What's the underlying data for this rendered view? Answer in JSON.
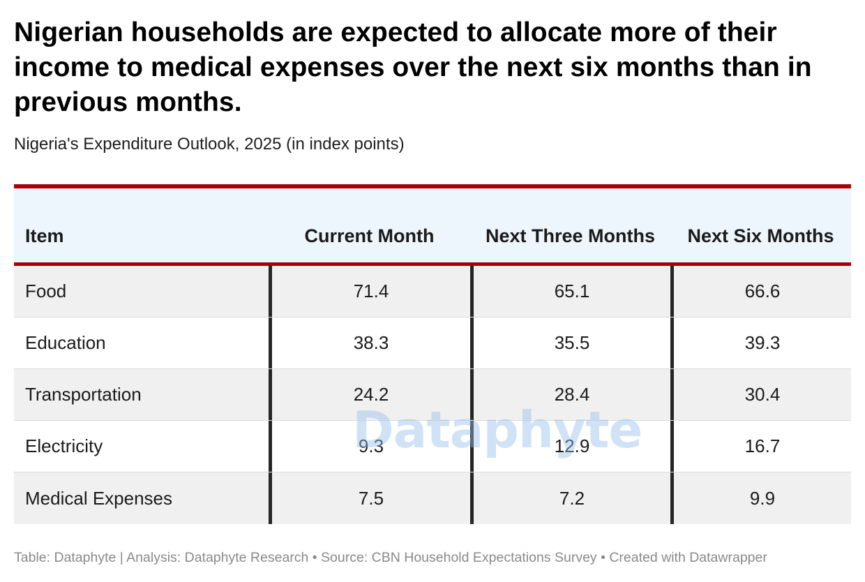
{
  "title": "Nigerian households are expected to allocate more of their income to medical expenses over the next six months than in previous months.",
  "subtitle": "Nigeria's Expenditure Outlook, 2025 (in index points)",
  "watermark": "Dataphyte",
  "footer": "Table: Dataphyte | Analysis: Dataphyte Research • Source: CBN Household Expectations Survey • Created with Datawrapper",
  "colors": {
    "accent_rule": "#a8000c",
    "header_bg": "#eef6fd",
    "row_stripe": "#f0f0f0",
    "column_divider": "#262626"
  },
  "chart_data": {
    "type": "table",
    "columns": [
      "Item",
      "Current Month",
      "Next Three Months",
      "Next Six Months"
    ],
    "rows": [
      {
        "item": "Food",
        "values": [
          "71.4",
          "65.1",
          "66.6"
        ]
      },
      {
        "item": "Education",
        "values": [
          "38.3",
          "35.5",
          "39.3"
        ]
      },
      {
        "item": "Transportation",
        "values": [
          "24.2",
          "28.4",
          "30.4"
        ]
      },
      {
        "item": "Electricity",
        "values": [
          "9.3",
          "12.9",
          "16.7"
        ]
      },
      {
        "item": "Medical Expenses",
        "values": [
          "7.5",
          "7.2",
          "9.9"
        ]
      }
    ]
  }
}
